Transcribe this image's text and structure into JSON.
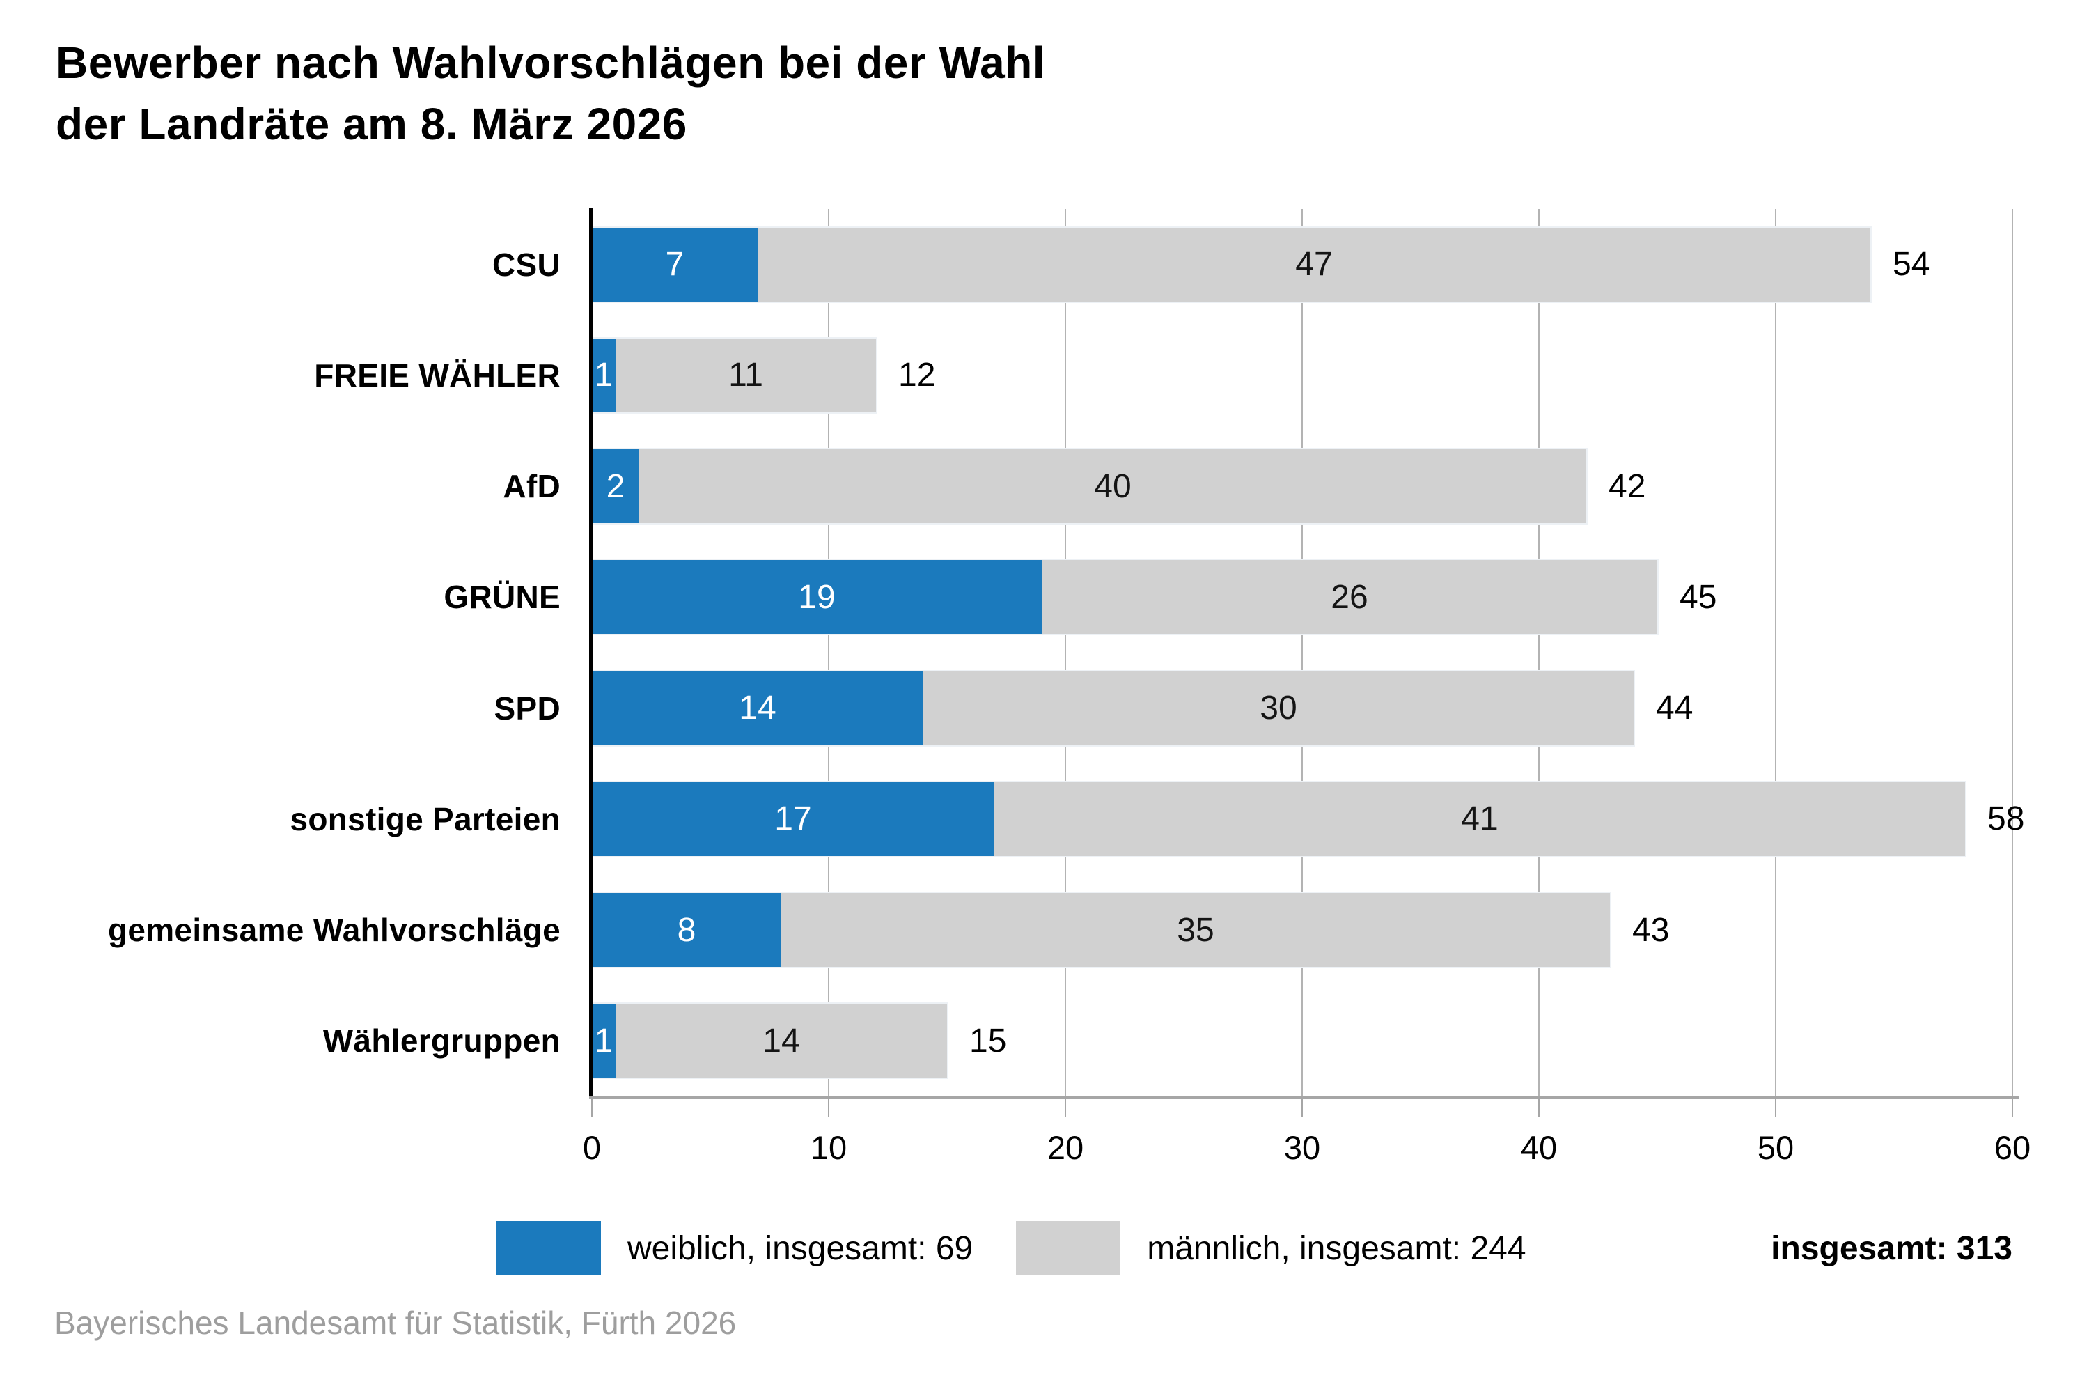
{
  "title": {
    "line1": "Bewerber nach Wahlvorschlägen bei der Wahl",
    "line2": "der Landräte am 8. März 2026"
  },
  "legend": {
    "weiblich_label": "weiblich, insgesamt: 69",
    "maennlich_label": "männlich, insgesamt: 244",
    "total_label": "insgesamt: 313"
  },
  "footer": "Bayerisches Landesamt für Statistik, Fürth 2026",
  "colors": {
    "weiblich": "#1b7abd",
    "maennlich": "#d1d1d1",
    "gridline": "#b3b3b3",
    "axis": "#000000",
    "baseline": "#a6a6a6",
    "footer_text": "#9e9e9e"
  },
  "chart_data": {
    "type": "bar",
    "orientation": "horizontal",
    "stacked": true,
    "title": "Bewerber nach Wahlvorschlägen bei der Wahl der Landräte am 8. März 2026",
    "categories": [
      "CSU",
      "FREIE WÄHLER",
      "AfD",
      "GRÜNE",
      "SPD",
      "sonstige Parteien",
      "gemeinsame Wahlvorschläge",
      "Wählergruppen"
    ],
    "series": [
      {
        "name": "weiblich",
        "values": [
          7,
          1,
          2,
          19,
          14,
          17,
          8,
          1
        ]
      },
      {
        "name": "männlich",
        "values": [
          47,
          11,
          40,
          26,
          30,
          41,
          35,
          14
        ]
      }
    ],
    "totals": [
      54,
      12,
      42,
      45,
      44,
      58,
      43,
      15
    ],
    "series_totals": {
      "weiblich": 69,
      "maennlich": 244,
      "insgesamt": 313
    },
    "x_ticks": [
      0,
      10,
      20,
      30,
      40,
      50,
      60
    ],
    "xlim": [
      0,
      60
    ],
    "grid": true,
    "legend_position": "bottom"
  }
}
